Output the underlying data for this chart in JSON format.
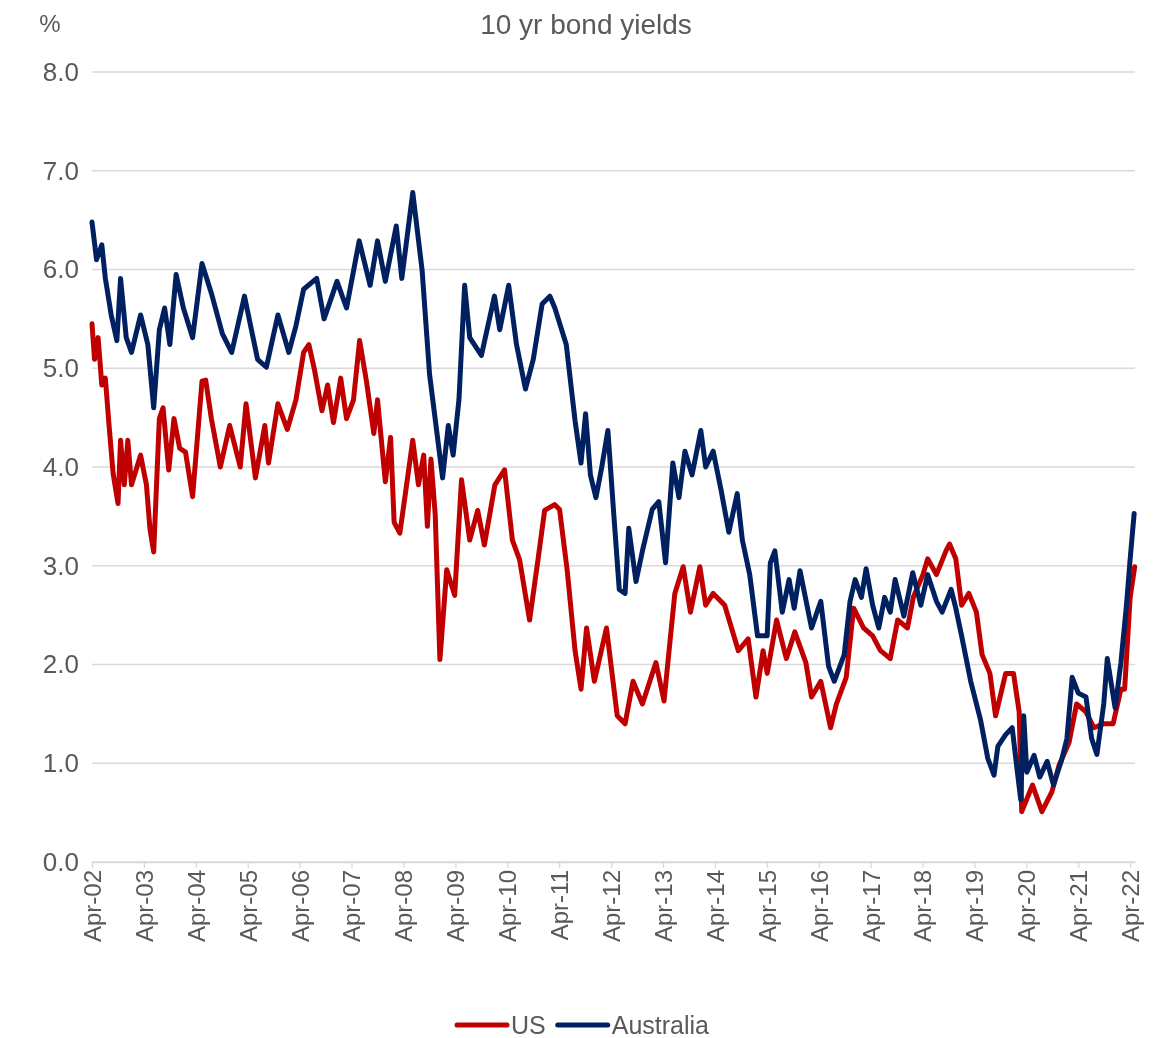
{
  "chart_data": {
    "type": "line",
    "title": "10 yr bond yields",
    "ylabel": "%",
    "legend": "bottom",
    "grid": "y",
    "line_style": "solid",
    "marker": "none",
    "xlim": [
      "2002-04-01",
      "2022-05-05"
    ],
    "xticks": [
      {
        "value": "2002-04-01",
        "label": "Apr-02"
      },
      {
        "value": "2003-04-01",
        "label": "Apr-03"
      },
      {
        "value": "2004-04-01",
        "label": "Apr-04"
      },
      {
        "value": "2005-04-01",
        "label": "Apr-05"
      },
      {
        "value": "2006-04-01",
        "label": "Apr-06"
      },
      {
        "value": "2007-04-01",
        "label": "Apr-07"
      },
      {
        "value": "2008-04-01",
        "label": "Apr-08"
      },
      {
        "value": "2009-04-01",
        "label": "Apr-09"
      },
      {
        "value": "2010-04-01",
        "label": "Apr-10"
      },
      {
        "value": "2011-04-01",
        "label": "Apr-11"
      },
      {
        "value": "2012-04-01",
        "label": "Apr-12"
      },
      {
        "value": "2013-04-01",
        "label": "Apr-13"
      },
      {
        "value": "2014-04-01",
        "label": "Apr-14"
      },
      {
        "value": "2015-04-01",
        "label": "Apr-15"
      },
      {
        "value": "2016-04-01",
        "label": "Apr-16"
      },
      {
        "value": "2017-04-01",
        "label": "Apr-17"
      },
      {
        "value": "2018-04-01",
        "label": "Apr-18"
      },
      {
        "value": "2019-04-01",
        "label": "Apr-19"
      },
      {
        "value": "2020-04-01",
        "label": "Apr-20"
      },
      {
        "value": "2021-04-01",
        "label": "Apr-21"
      },
      {
        "value": "2022-04-01",
        "label": "Apr-22"
      }
    ],
    "ylim": [
      0,
      8
    ],
    "yticks": [
      {
        "value": 0,
        "label": "0.0"
      },
      {
        "value": 1,
        "label": "1.0"
      },
      {
        "value": 2,
        "label": "2.0"
      },
      {
        "value": 3,
        "label": "3.0"
      },
      {
        "value": 4,
        "label": "4.0"
      },
      {
        "value": 5,
        "label": "5.0"
      },
      {
        "value": 6,
        "label": "6.0"
      },
      {
        "value": 7,
        "label": "7.0"
      },
      {
        "value": 8,
        "label": "8.0"
      }
    ],
    "series": [
      {
        "name": "US",
        "color": "#c00000",
        "x": [
          "2002-04-01",
          "2002-04-19",
          "2002-05-14",
          "2002-06-09",
          "2002-07-04",
          "2002-07-30",
          "2002-08-28",
          "2002-10-01",
          "2002-10-19",
          "2002-11-14",
          "2002-12-09",
          "2003-01-04",
          "2003-03-09",
          "2003-04-19",
          "2003-05-14",
          "2003-06-09",
          "2003-07-19",
          "2003-08-14",
          "2003-09-23",
          "2003-10-30",
          "2003-12-09",
          "2004-01-19",
          "2004-03-09",
          "2004-05-14",
          "2004-06-09",
          "2004-07-19",
          "2004-09-20",
          "2004-11-25",
          "2005-02-07",
          "2005-03-20",
          "2005-05-25",
          "2005-07-30",
          "2005-08-25",
          "2005-10-30",
          "2006-01-04",
          "2006-03-06",
          "2006-04-29",
          "2006-06-05",
          "2006-07-15",
          "2006-09-05",
          "2006-10-15",
          "2006-11-25",
          "2007-01-15",
          "2007-02-25",
          "2007-04-15",
          "2007-05-28",
          "2007-07-15",
          "2007-09-05",
          "2007-10-01",
          "2007-11-25",
          "2008-01-01",
          "2008-01-26",
          "2008-03-06",
          "2008-04-15",
          "2008-06-05",
          "2008-07-15",
          "2008-08-21",
          "2008-09-16",
          "2008-10-11",
          "2008-11-10",
          "2008-12-13",
          "2009-01-30",
          "2009-03-27",
          "2009-05-14",
          "2009-07-11",
          "2009-09-05",
          "2009-10-22",
          "2010-01-04",
          "2010-03-13",
          "2010-05-07",
          "2010-06-27",
          "2010-09-05",
          "2010-11-03",
          "2010-12-20",
          "2011-02-28",
          "2011-04-04",
          "2011-05-28",
          "2011-07-22",
          "2011-09-02",
          "2011-10-11",
          "2011-12-05",
          "2012-02-28",
          "2012-05-14",
          "2012-07-08",
          "2012-09-02",
          "2012-11-07",
          "2013-02-10",
          "2013-04-08",
          "2013-06-23",
          "2013-08-21",
          "2013-10-11",
          "2013-12-16",
          "2014-01-26",
          "2014-03-20",
          "2014-06-09",
          "2014-09-13",
          "2014-11-21",
          "2015-01-15",
          "2015-03-06",
          "2015-04-04",
          "2015-06-09",
          "2015-08-17",
          "2015-10-15",
          "2016-01-01",
          "2016-02-10",
          "2016-04-15",
          "2016-06-23",
          "2016-08-03",
          "2016-10-11",
          "2016-12-02",
          "2017-02-10",
          "2017-04-15",
          "2017-06-09",
          "2017-08-17",
          "2017-10-08",
          "2017-12-16",
          "2018-01-26",
          "2018-04-04",
          "2018-05-07",
          "2018-07-08",
          "2018-09-13",
          "2018-10-08",
          "2018-11-21",
          "2019-01-01",
          "2019-02-21",
          "2019-04-15",
          "2019-05-25",
          "2019-07-19",
          "2019-08-28",
          "2019-11-07",
          "2020-01-01",
          "2020-02-10",
          "2020-02-28",
          "2020-05-14",
          "2020-07-19",
          "2020-09-27",
          "2020-11-17",
          "2021-01-26",
          "2021-03-20",
          "2021-05-25",
          "2021-07-19",
          "2021-09-27",
          "2021-12-02",
          "2022-01-26",
          "2022-02-21",
          "2022-04-01",
          "2022-05-03"
        ],
        "values": [
          5.45,
          5.09,
          5.31,
          4.83,
          4.9,
          4.42,
          3.93,
          3.63,
          4.27,
          3.82,
          4.27,
          3.82,
          4.12,
          3.82,
          3.37,
          3.14,
          4.49,
          4.6,
          3.97,
          4.49,
          4.19,
          4.15,
          3.7,
          4.87,
          4.88,
          4.49,
          4.0,
          4.42,
          4.0,
          4.64,
          3.89,
          4.42,
          4.04,
          4.64,
          4.38,
          4.68,
          5.16,
          5.24,
          4.98,
          4.57,
          4.83,
          4.45,
          4.9,
          4.49,
          4.68,
          5.28,
          4.87,
          4.34,
          4.68,
          3.85,
          4.3,
          3.44,
          3.33,
          3.74,
          4.27,
          3.82,
          4.12,
          3.4,
          4.08,
          3.52,
          2.05,
          2.96,
          2.7,
          3.87,
          3.26,
          3.56,
          3.21,
          3.82,
          3.97,
          3.26,
          3.06,
          2.45,
          3.06,
          3.56,
          3.62,
          3.57,
          2.95,
          2.14,
          1.75,
          2.37,
          1.83,
          2.37,
          1.48,
          1.4,
          1.83,
          1.6,
          2.02,
          1.63,
          2.72,
          2.99,
          2.53,
          2.99,
          2.6,
          2.72,
          2.6,
          2.14,
          2.26,
          1.67,
          2.14,
          1.91,
          2.45,
          2.06,
          2.33,
          2.02,
          1.67,
          1.83,
          1.36,
          1.6,
          1.87,
          2.57,
          2.37,
          2.29,
          2.14,
          2.06,
          2.45,
          2.37,
          2.68,
          2.91,
          3.07,
          2.91,
          3.15,
          3.22,
          3.07,
          2.6,
          2.72,
          2.53,
          2.1,
          1.91,
          1.48,
          1.91,
          1.91,
          1.52,
          0.51,
          0.78,
          0.51,
          0.71,
          0.98,
          1.21,
          1.6,
          1.52,
          1.36,
          1.4,
          1.4,
          1.75,
          1.75,
          2.68,
          2.99
        ]
      },
      {
        "name": "Australia",
        "color": "#002060",
        "x": [
          "2002-04-01",
          "2002-05-03",
          "2002-06-09",
          "2002-07-04",
          "2002-08-14",
          "2002-09-23",
          "2002-10-19",
          "2002-11-28",
          "2003-01-04",
          "2003-03-09",
          "2003-04-29",
          "2003-06-09",
          "2003-07-19",
          "2003-08-25",
          "2003-10-01",
          "2003-11-14",
          "2004-01-04",
          "2004-03-09",
          "2004-05-14",
          "2004-07-19",
          "2004-10-04",
          "2004-12-09",
          "2005-03-09",
          "2005-06-09",
          "2005-08-10",
          "2005-10-30",
          "2006-01-15",
          "2006-03-06",
          "2006-04-29",
          "2006-07-30",
          "2006-09-20",
          "2006-12-20",
          "2007-02-25",
          "2007-05-25",
          "2007-08-10",
          "2007-10-01",
          "2007-11-25",
          "2008-02-10",
          "2008-03-20",
          "2008-06-05",
          "2008-08-10",
          "2008-10-01",
          "2009-01-01",
          "2009-02-10",
          "2009-03-16",
          "2009-04-26",
          "2009-06-05",
          "2009-07-11",
          "2009-10-01",
          "2010-01-01",
          "2010-02-07",
          "2010-04-11",
          "2010-06-05",
          "2010-08-07",
          "2010-10-01",
          "2010-12-02",
          "2011-01-26",
          "2011-03-02",
          "2011-05-21",
          "2011-07-22",
          "2011-09-02",
          "2011-10-04",
          "2011-11-07",
          "2011-12-16",
          "2012-01-26",
          "2012-03-09",
          "2012-04-19",
          "2012-05-28",
          "2012-07-08",
          "2012-08-03",
          "2012-09-23",
          "2012-11-07",
          "2013-01-15",
          "2013-03-02",
          "2013-04-19",
          "2013-06-09",
          "2013-07-22",
          "2013-09-02",
          "2013-10-22",
          "2013-12-23",
          "2014-01-26",
          "2014-03-20",
          "2014-05-14",
          "2014-07-08",
          "2014-09-05",
          "2014-10-11",
          "2014-12-02",
          "2015-01-26",
          "2015-04-04",
          "2015-04-26",
          "2015-05-28",
          "2015-07-19",
          "2015-09-05",
          "2015-10-11",
          "2015-11-21",
          "2016-02-10",
          "2016-04-15",
          "2016-06-09",
          "2016-07-19",
          "2016-09-27",
          "2016-11-07",
          "2016-12-13",
          "2017-01-26",
          "2017-02-28",
          "2017-04-15",
          "2017-05-28",
          "2017-07-08",
          "2017-08-17",
          "2017-09-20",
          "2017-11-21",
          "2018-01-22",
          "2018-03-20",
          "2018-05-07",
          "2018-07-08",
          "2018-08-17",
          "2018-10-19",
          "2018-11-21",
          "2019-01-01",
          "2019-03-06",
          "2019-05-14",
          "2019-07-04",
          "2019-08-17",
          "2019-09-13",
          "2019-11-07",
          "2019-12-23",
          "2020-01-26",
          "2020-02-21",
          "2020-03-13",
          "2020-04-04",
          "2020-05-25",
          "2020-07-04",
          "2020-08-25",
          "2020-10-08",
          "2020-12-02",
          "2021-01-11",
          "2021-02-17",
          "2021-04-01",
          "2021-05-25",
          "2021-07-04",
          "2021-08-10",
          "2021-09-27",
          "2021-10-22",
          "2021-12-16",
          "2022-01-26",
          "2022-03-06",
          "2022-04-01",
          "2022-04-29"
        ],
        "values": [
          6.48,
          6.1,
          6.25,
          5.91,
          5.54,
          5.28,
          5.91,
          5.31,
          5.16,
          5.54,
          5.24,
          4.6,
          5.39,
          5.61,
          5.24,
          5.95,
          5.61,
          5.31,
          6.06,
          5.76,
          5.35,
          5.16,
          5.73,
          5.09,
          5.01,
          5.54,
          5.16,
          5.43,
          5.8,
          5.91,
          5.5,
          5.88,
          5.61,
          6.29,
          5.84,
          6.29,
          5.88,
          6.44,
          5.91,
          6.78,
          5.99,
          4.94,
          3.89,
          4.42,
          4.12,
          4.68,
          5.84,
          5.31,
          5.13,
          5.73,
          5.39,
          5.84,
          5.24,
          4.79,
          5.09,
          5.65,
          5.73,
          5.61,
          5.24,
          4.47,
          4.04,
          4.54,
          3.92,
          3.69,
          4.0,
          4.37,
          3.53,
          2.76,
          2.72,
          3.38,
          2.84,
          3.15,
          3.57,
          3.65,
          3.03,
          4.04,
          3.69,
          4.16,
          3.92,
          4.37,
          4.0,
          4.16,
          3.77,
          3.34,
          3.73,
          3.26,
          2.91,
          2.29,
          2.29,
          3.03,
          3.15,
          2.53,
          2.86,
          2.57,
          2.95,
          2.37,
          2.64,
          1.98,
          1.83,
          2.1,
          2.64,
          2.86,
          2.68,
          2.97,
          2.6,
          2.37,
          2.68,
          2.53,
          2.86,
          2.49,
          2.93,
          2.6,
          2.91,
          2.64,
          2.53,
          2.76,
          2.57,
          2.29,
          1.83,
          1.44,
          1.05,
          0.88,
          1.17,
          1.29,
          1.36,
          0.94,
          0.63,
          1.48,
          0.91,
          1.08,
          0.86,
          1.02,
          0.78,
          1.02,
          1.25,
          1.87,
          1.71,
          1.67,
          1.25,
          1.09,
          1.6,
          2.06,
          1.56,
          2.02,
          2.6,
          3.07,
          3.53
        ]
      }
    ]
  }
}
